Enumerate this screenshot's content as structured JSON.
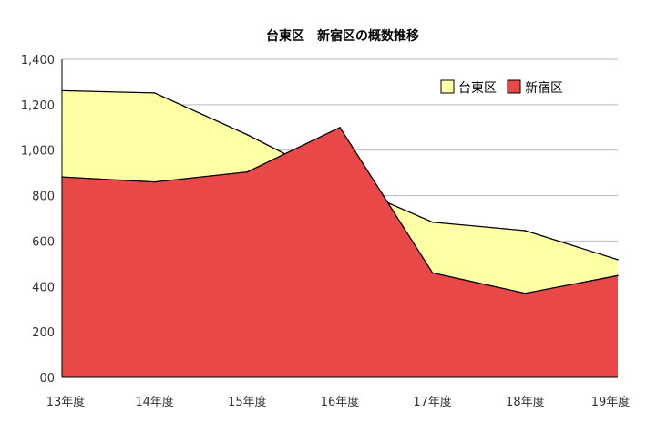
{
  "chart_data": {
    "type": "area",
    "title": "台東区　新宿区の概数推移",
    "categories": [
      "13年度",
      "14年度",
      "15年度",
      "16年度",
      "17年度",
      "18年度",
      "19年度"
    ],
    "series": [
      {
        "name": "台東区",
        "color": "#ffffa6",
        "values": [
          1262,
          1252,
          1068,
          860,
          683,
          646,
          518
        ]
      },
      {
        "name": "新宿区",
        "color": "#e84848",
        "values": [
          882,
          860,
          904,
          1100,
          460,
          370,
          448
        ]
      }
    ],
    "y_ticks": [
      "00",
      "200",
      "400",
      "600",
      "800",
      "1,000",
      "1,200",
      "1,400"
    ],
    "ylim": [
      0,
      1400
    ],
    "grid": true,
    "legend_position": "top-right"
  }
}
